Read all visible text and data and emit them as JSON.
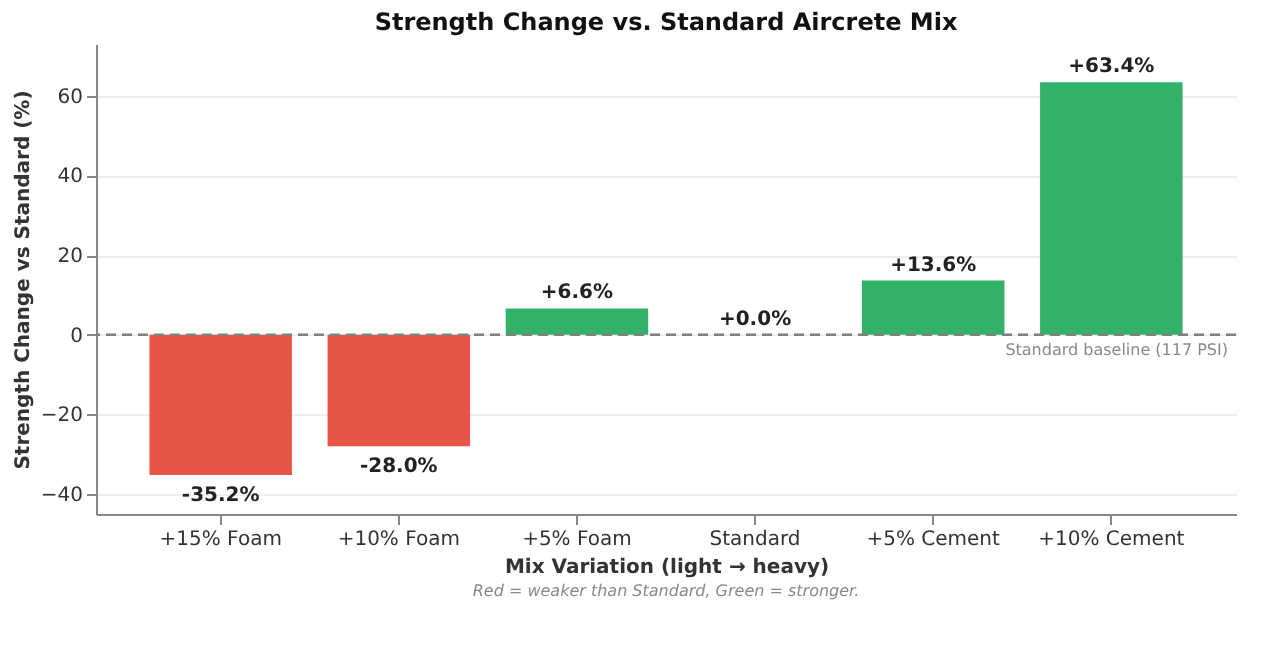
{
  "chart_data": {
    "type": "bar",
    "title": "Strength Change vs. Standard Aircrete Mix",
    "xlabel": "Mix Variation (light → heavy)",
    "ylabel": "Strength Change vs Standard (%)",
    "categories": [
      "+15% Foam",
      "+10% Foam",
      "+5% Foam",
      "Standard",
      "+5% Cement",
      "+10% Cement"
    ],
    "values": [
      -35.2,
      -28.0,
      6.6,
      0.0,
      13.6,
      63.4
    ],
    "value_labels": [
      "-35.2%",
      "-28.0%",
      "+6.6%",
      "+0.0%",
      "+13.6%",
      "+63.4%"
    ],
    "colors": [
      "#e74c3c",
      "#e74c3c",
      "#27ae60",
      "#95a5a6",
      "#27ae60",
      "#27ae60"
    ],
    "ylim": [
      -45,
      73
    ],
    "yticks": [
      -40,
      -20,
      0,
      20,
      40,
      60
    ],
    "grid": "y",
    "ref_lines": [
      {
        "axis": "y",
        "value": 0,
        "label": "Standard baseline (117 PSI)",
        "color": "#7f7f7f",
        "line_style": "dashed"
      }
    ],
    "annotations": [
      "Red = weaker than Standard, Green = stronger."
    ]
  }
}
